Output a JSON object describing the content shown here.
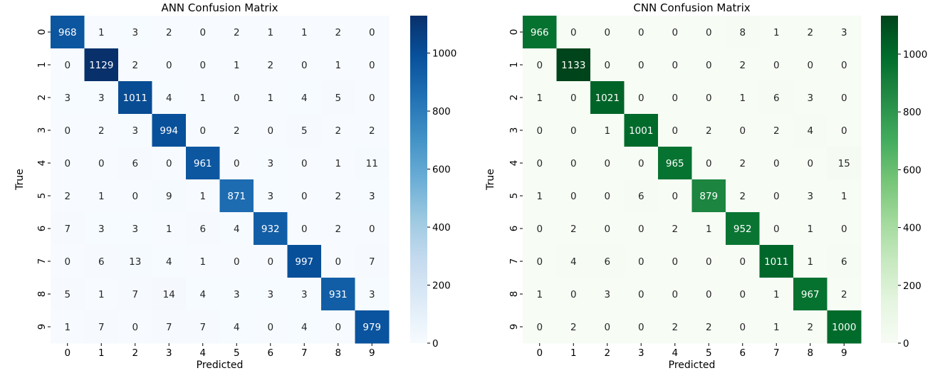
{
  "chart_data": [
    {
      "type": "heatmap",
      "title": "ANN Confusion Matrix",
      "xlabel": "Predicted",
      "ylabel": "True",
      "x_ticks": [
        "0",
        "1",
        "2",
        "3",
        "4",
        "5",
        "6",
        "7",
        "8",
        "9"
      ],
      "y_ticks": [
        "0",
        "1",
        "2",
        "3",
        "4",
        "5",
        "6",
        "7",
        "8",
        "9"
      ],
      "colormap": "Blues",
      "colors": [
        "#f7fbff",
        "#deebf7",
        "#c6dbef",
        "#9ecae1",
        "#6baed6",
        "#4292c6",
        "#2171b5",
        "#08519c",
        "#08306b"
      ],
      "vmin": 0,
      "vmax": 1129,
      "colorbar_ticks": [
        0,
        200,
        400,
        600,
        800,
        1000
      ],
      "matrix": [
        [
          968,
          1,
          3,
          2,
          0,
          2,
          1,
          1,
          2,
          0
        ],
        [
          0,
          1129,
          2,
          0,
          0,
          1,
          2,
          0,
          1,
          0
        ],
        [
          3,
          3,
          1011,
          4,
          1,
          0,
          1,
          4,
          5,
          0
        ],
        [
          0,
          2,
          3,
          994,
          0,
          2,
          0,
          5,
          2,
          2
        ],
        [
          0,
          0,
          6,
          0,
          961,
          0,
          3,
          0,
          1,
          11
        ],
        [
          2,
          1,
          0,
          9,
          1,
          871,
          3,
          0,
          2,
          3
        ],
        [
          7,
          3,
          3,
          1,
          6,
          4,
          932,
          0,
          2,
          0
        ],
        [
          0,
          6,
          13,
          4,
          1,
          0,
          0,
          997,
          0,
          7
        ],
        [
          5,
          1,
          7,
          14,
          4,
          3,
          3,
          3,
          931,
          3
        ],
        [
          1,
          7,
          0,
          7,
          7,
          4,
          0,
          4,
          0,
          979
        ]
      ]
    },
    {
      "type": "heatmap",
      "title": "CNN Confusion Matrix",
      "xlabel": "Predicted",
      "ylabel": "True",
      "x_ticks": [
        "0",
        "1",
        "2",
        "3",
        "4",
        "5",
        "6",
        "7",
        "8",
        "9"
      ],
      "y_ticks": [
        "0",
        "1",
        "2",
        "3",
        "4",
        "5",
        "6",
        "7",
        "8",
        "9"
      ],
      "colormap": "Greens",
      "colors": [
        "#f7fcf5",
        "#e5f5e0",
        "#c7e9c0",
        "#a1d99b",
        "#74c476",
        "#41ab5d",
        "#238b45",
        "#006d2c",
        "#00441b"
      ],
      "vmin": 0,
      "vmax": 1133,
      "colorbar_ticks": [
        0,
        200,
        400,
        600,
        800,
        1000
      ],
      "matrix": [
        [
          966,
          0,
          0,
          0,
          0,
          0,
          8,
          1,
          2,
          3
        ],
        [
          0,
          1133,
          0,
          0,
          0,
          0,
          2,
          0,
          0,
          0
        ],
        [
          1,
          0,
          1021,
          0,
          0,
          0,
          1,
          6,
          3,
          0
        ],
        [
          0,
          0,
          1,
          1001,
          0,
          2,
          0,
          2,
          4,
          0
        ],
        [
          0,
          0,
          0,
          0,
          965,
          0,
          2,
          0,
          0,
          15
        ],
        [
          1,
          0,
          0,
          6,
          0,
          879,
          2,
          0,
          3,
          1
        ],
        [
          0,
          2,
          0,
          0,
          2,
          1,
          952,
          0,
          1,
          0
        ],
        [
          0,
          4,
          6,
          0,
          0,
          0,
          0,
          1011,
          1,
          6
        ],
        [
          1,
          0,
          3,
          0,
          0,
          0,
          0,
          1,
          967,
          2
        ],
        [
          0,
          2,
          0,
          0,
          2,
          2,
          0,
          1,
          2,
          1000
        ]
      ]
    }
  ]
}
